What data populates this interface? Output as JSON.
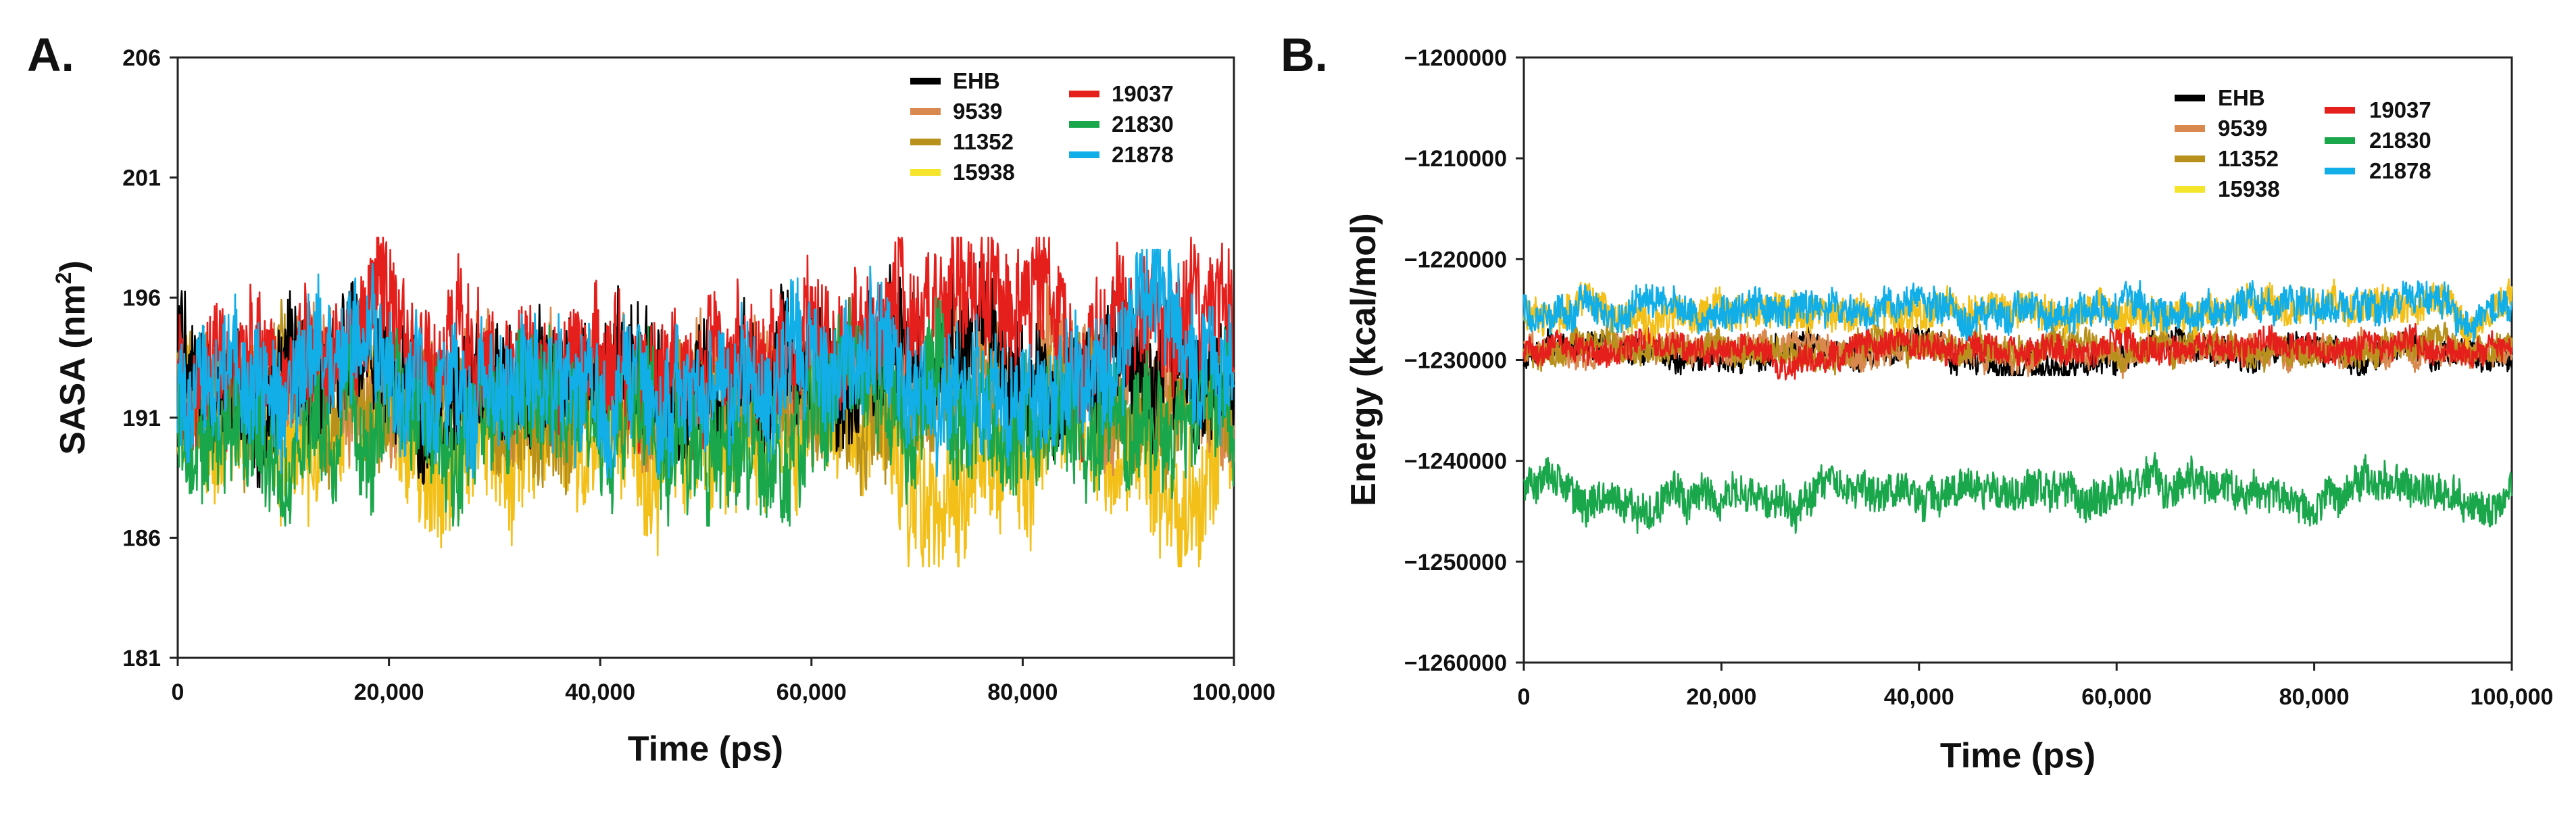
{
  "colors": {
    "EHB": "#000000",
    "9539": "#d9884e",
    "11352": "#b8901c",
    "15938": "#f5e52a",
    "19037": "#e5201c",
    "21830": "#1aa64a",
    "21878": "#12aee8",
    "15938_trace": "#f3c01a"
  },
  "chart_data": [
    {
      "panel_label": "A.",
      "type": "line",
      "xlabel": "Time (ps)",
      "ylabel_main": "SASA (nm",
      "ylabel_sup": "2",
      "ylabel_tail": ")",
      "xlim": [
        0,
        100000
      ],
      "ylim": [
        181,
        206
      ],
      "xticks": [
        0,
        20000,
        40000,
        60000,
        80000,
        100000
      ],
      "xtick_labels": [
        "0",
        "20,000",
        "40,000",
        "60,000",
        "80,000",
        "100,000"
      ],
      "yticks": [
        181,
        186,
        191,
        196,
        201,
        206
      ],
      "ytick_labels": [
        "181",
        "186",
        "191",
        "196",
        "201",
        "206"
      ],
      "grid": false,
      "legend_position": "top-right",
      "legend_left": [
        "EHB",
        "9539",
        "11352",
        "15938"
      ],
      "legend_right": [
        "19037",
        "21830",
        "21878"
      ],
      "series": [
        {
          "name": "EHB",
          "mean_start": 192.5,
          "mean_end": 194.3,
          "spread": 4.6,
          "max": 199.0,
          "min": 187.0
        },
        {
          "name": "9539",
          "mean_start": 192.2,
          "mean_end": 192.8,
          "spread": 4.0,
          "max": 197.0,
          "min": 188.0
        },
        {
          "name": "11352",
          "mean_start": 191.8,
          "mean_end": 192.0,
          "spread": 4.0,
          "max": 196.5,
          "min": 187.5
        },
        {
          "name": "15938",
          "mean_start": 190.5,
          "mean_end": 189.5,
          "spread": 5.4,
          "max": 194.0,
          "min": 184.8
        },
        {
          "name": "19037",
          "mean_start": 192.8,
          "mean_end": 195.0,
          "spread": 4.8,
          "max": 198.5,
          "min": 188.5
        },
        {
          "name": "21830",
          "mean_start": 191.0,
          "mean_end": 190.6,
          "spread": 4.8,
          "max": 196.0,
          "min": 186.5
        },
        {
          "name": "21878",
          "mean_start": 192.8,
          "mean_end": 192.8,
          "spread": 4.8,
          "max": 198.0,
          "min": 188.5
        }
      ]
    },
    {
      "panel_label": "B.",
      "type": "line",
      "xlabel": "Time (ps)",
      "ylabel": "Energy (kcal/mol)",
      "xlim": [
        0,
        100000
      ],
      "ylim": [
        -1260000,
        -1200000
      ],
      "xticks": [
        0,
        20000,
        40000,
        60000,
        80000,
        100000
      ],
      "xtick_labels": [
        "0",
        "20,000",
        "40,000",
        "60,000",
        "80,000",
        "100,000"
      ],
      "yticks": [
        -1260000,
        -1250000,
        -1240000,
        -1230000,
        -1220000,
        -1210000,
        -1200000
      ],
      "ytick_labels": [
        "−1260000",
        "−1250000",
        "−1240000",
        "−1230000",
        "−1220000",
        "−1210000",
        "−1200000"
      ],
      "grid": false,
      "legend_position": "top-right",
      "legend_left": [
        "EHB",
        "9539",
        "11352",
        "15938"
      ],
      "legend_right": [
        "19037",
        "21830",
        "21878"
      ],
      "series": [
        {
          "name": "EHB",
          "mean_start": -1229200,
          "mean_end": -1229200,
          "spread": 2600,
          "max": -1226000,
          "min": -1231500
        },
        {
          "name": "9539",
          "mean_start": -1229000,
          "mean_end": -1229000,
          "spread": 2600,
          "max": -1226000,
          "min": -1232000
        },
        {
          "name": "11352",
          "mean_start": -1229000,
          "mean_end": -1229000,
          "spread": 2600,
          "max": -1226000,
          "min": -1232000
        },
        {
          "name": "15938",
          "mean_start": -1225000,
          "mean_end": -1225000,
          "spread": 3200,
          "max": -1220000,
          "min": -1229000
        },
        {
          "name": "19037",
          "mean_start": -1228800,
          "mean_end": -1228800,
          "spread": 2600,
          "max": -1226000,
          "min": -1232000
        },
        {
          "name": "21830",
          "mean_start": -1243000,
          "mean_end": -1243000,
          "spread": 3500,
          "max": -1238000,
          "min": -1248000
        },
        {
          "name": "21878",
          "mean_start": -1225000,
          "mean_end": -1225000,
          "spread": 3200,
          "max": -1220000,
          "min": -1228500
        }
      ]
    }
  ]
}
